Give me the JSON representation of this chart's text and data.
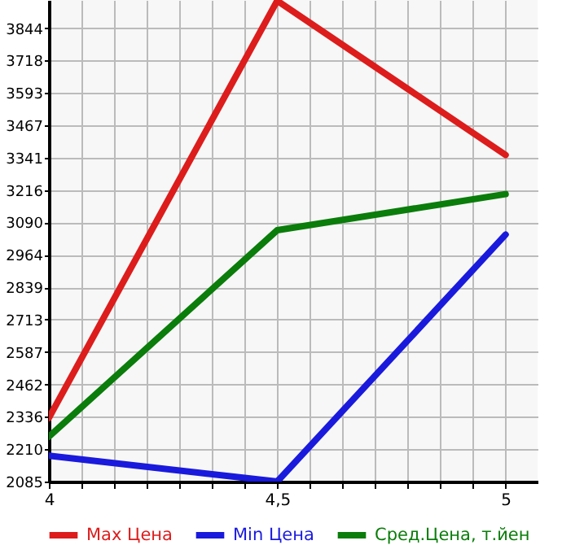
{
  "chart_data": {
    "type": "line",
    "x": [
      4,
      4.5,
      5
    ],
    "series": [
      {
        "name": "Max Цена",
        "color": "#dd1c1c",
        "values": [
          2332,
          3950,
          3352
        ]
      },
      {
        "name": "Min Цена",
        "color": "#1a1add",
        "values": [
          2185,
          2085,
          3043
        ]
      },
      {
        "name": "Сред.Цена, т.йен",
        "color": "#0a7d0a",
        "values": [
          2259,
          3060,
          3200
        ]
      }
    ],
    "xlim": [
      4,
      5.07
    ],
    "xticks": [
      4,
      {
        "value": 4.071,
        "label": null
      },
      {
        "value": 4.143,
        "label": null
      },
      {
        "value": 4.214,
        "label": null
      },
      {
        "value": 4.286,
        "label": null
      },
      {
        "value": 4.357,
        "label": null
      },
      {
        "value": 4.429,
        "label": null
      },
      {
        "value": 4.5,
        "label": "4,5"
      },
      {
        "value": 4.571,
        "label": null
      },
      {
        "value": 4.643,
        "label": null
      },
      {
        "value": 4.714,
        "label": null
      },
      {
        "value": 4.786,
        "label": null
      },
      {
        "value": 4.857,
        "label": null
      },
      {
        "value": 4.929,
        "label": null
      },
      5
    ],
    "ylim": [
      2085,
      3953
    ],
    "yticks": [
      2085,
      2210,
      2336,
      2462,
      2587,
      2713,
      2839,
      2964,
      3090,
      3216,
      3341,
      3467,
      3593,
      3718,
      3844
    ],
    "grid": true,
    "legend": "bottom",
    "marker": "none",
    "line_style": "solid"
  }
}
